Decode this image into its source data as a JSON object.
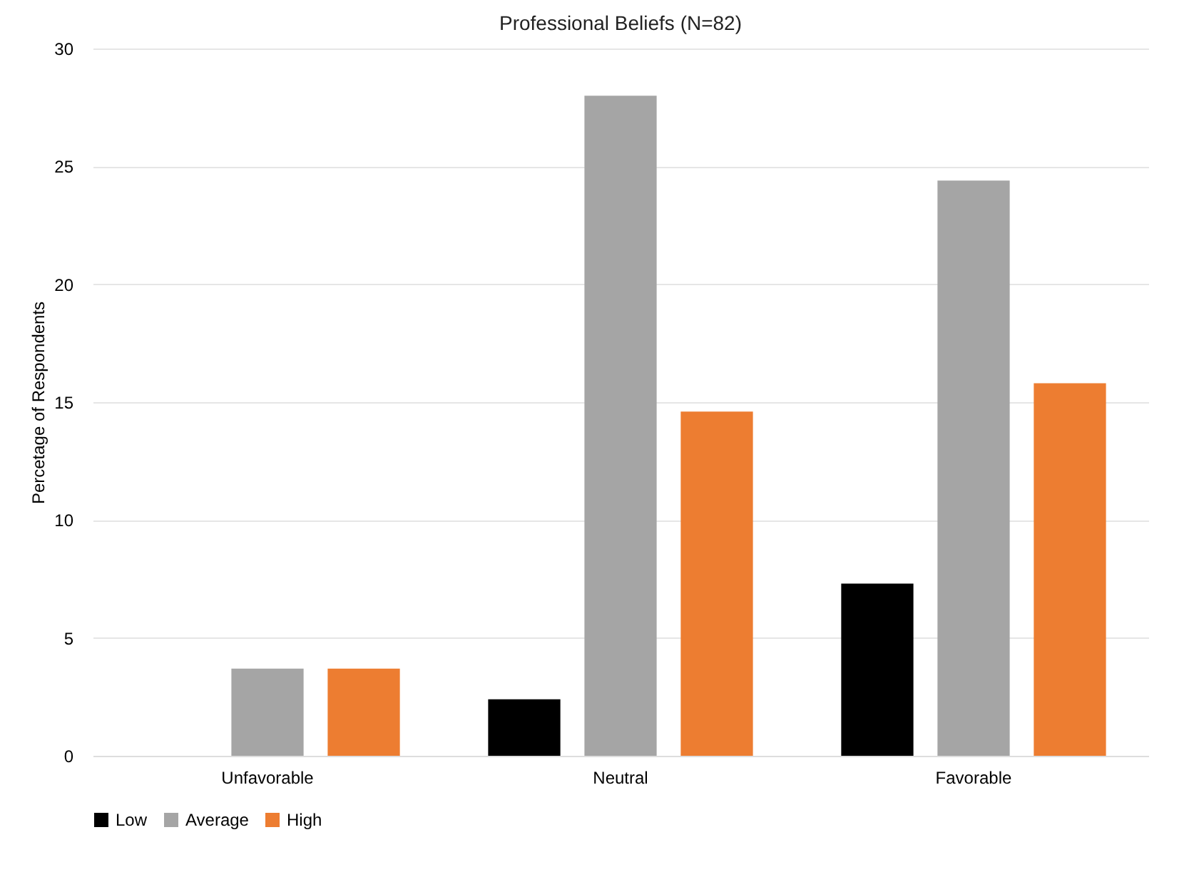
{
  "chart_data": {
    "type": "bar",
    "title": "Professional Beliefs (N=82)",
    "ylabel": "Percetage of Respondents",
    "categories": [
      "Unfavorable",
      "Neutral",
      "Favorable"
    ],
    "series": [
      {
        "name": "Low",
        "color": "#000000",
        "values": [
          0,
          2.4,
          7.3
        ]
      },
      {
        "name": "Average",
        "color": "#a5a5a5",
        "values": [
          3.7,
          28.0,
          24.4
        ]
      },
      {
        "name": "High",
        "color": "#ed7d31",
        "values": [
          3.7,
          14.6,
          15.8
        ]
      }
    ],
    "ylim": [
      0,
      30
    ],
    "yticks": [
      0,
      5,
      10,
      15,
      20,
      25,
      30
    ],
    "grid": "y",
    "legend": "bottom"
  }
}
